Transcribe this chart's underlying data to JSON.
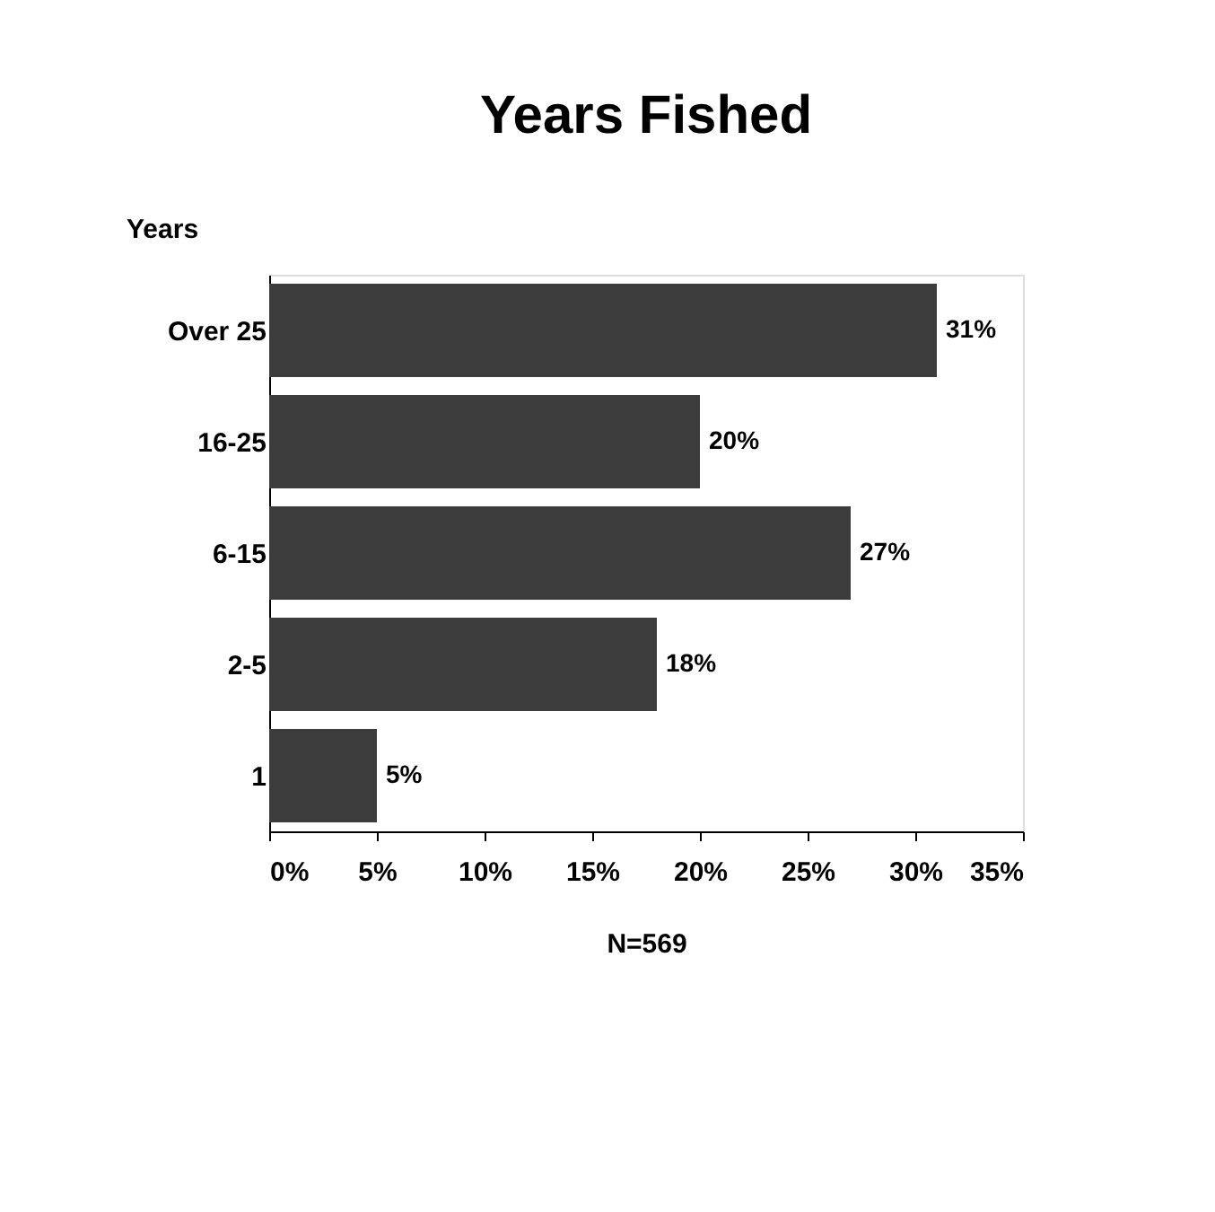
{
  "chart_data": {
    "type": "bar",
    "orientation": "horizontal",
    "title": "Years Fished",
    "ylabel": "Years",
    "xlabel": "N=569",
    "categories": [
      "Over 25",
      "16-25",
      "6-15",
      "2-5",
      "1"
    ],
    "values": [
      31,
      20,
      27,
      18,
      5
    ],
    "value_labels": [
      "31%",
      "20%",
      "27%",
      "18%",
      "5%"
    ],
    "color": "#3c3c3c",
    "xlim": [
      0,
      35
    ],
    "xticks": [
      {
        "value": 0,
        "label": "0%"
      },
      {
        "value": 5,
        "label": "5%"
      },
      {
        "value": 10,
        "label": "10%"
      },
      {
        "value": 15,
        "label": "15%"
      },
      {
        "value": 20,
        "label": "20%"
      },
      {
        "value": 25,
        "label": "25%"
      },
      {
        "value": 30,
        "label": "30%"
      },
      {
        "value": 35,
        "label": "35%"
      }
    ],
    "grid": false
  }
}
